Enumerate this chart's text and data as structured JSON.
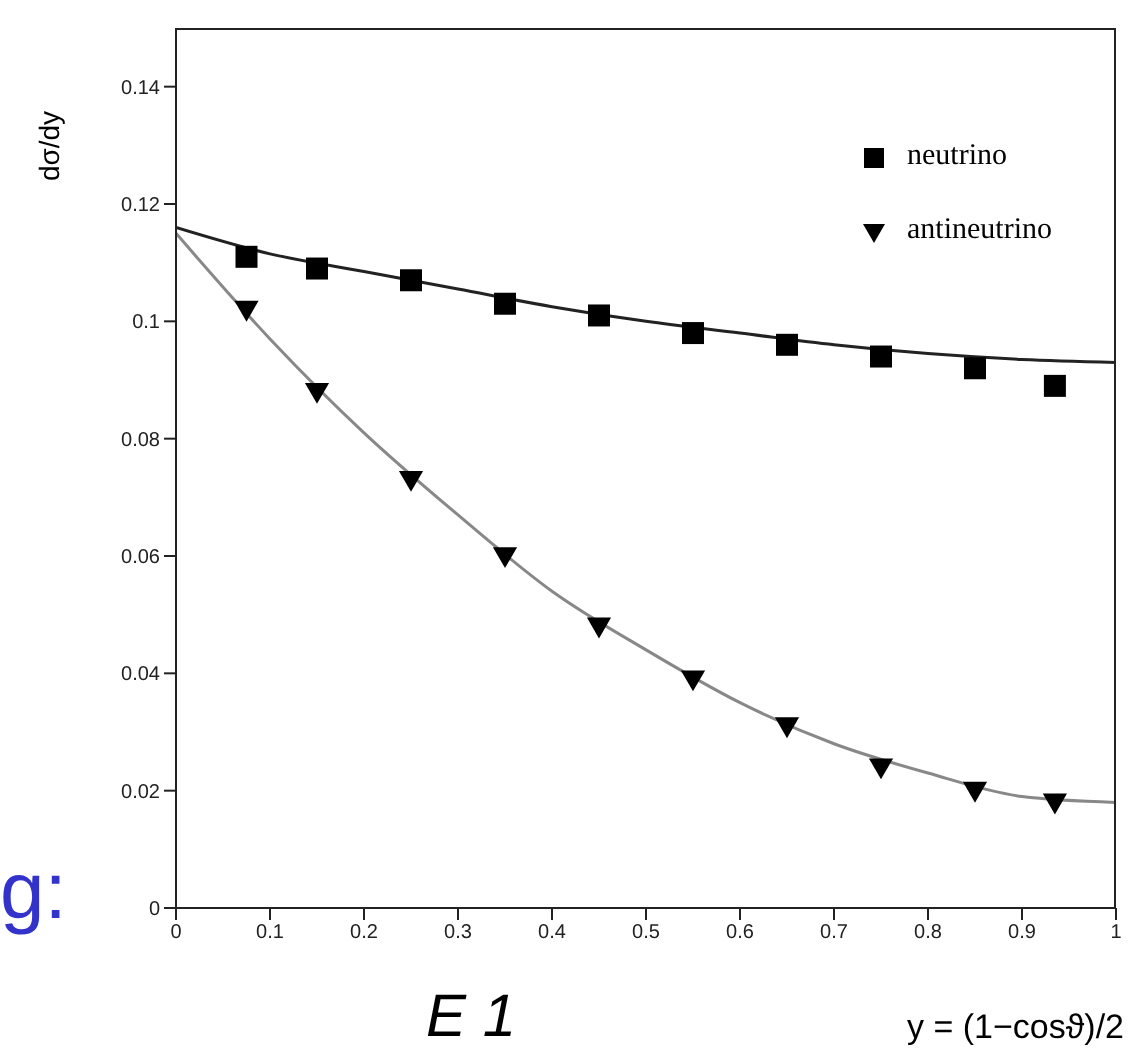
{
  "chart_data": {
    "type": "scatter",
    "xlabel": "y = (1−cosϑ)/2",
    "ylabel": "dσ/dy",
    "xlim": [
      0,
      1
    ],
    "ylim": [
      0,
      0.15
    ],
    "xticks": [
      0,
      0.1,
      0.2,
      0.3,
      0.4,
      0.5,
      0.6,
      0.7,
      0.8,
      0.9,
      1
    ],
    "yticks": [
      0,
      0.02,
      0.04,
      0.06,
      0.08,
      0.1,
      0.12,
      0.14
    ],
    "legend": "top right",
    "annotations": [
      "g:",
      "E 1"
    ],
    "series": [
      {
        "name": "neutrino",
        "marker": "square",
        "color": "#000000",
        "x": [
          0.075,
          0.15,
          0.25,
          0.35,
          0.45,
          0.55,
          0.65,
          0.75,
          0.85,
          0.935
        ],
        "values": [
          0.111,
          0.109,
          0.107,
          0.103,
          0.101,
          0.098,
          0.096,
          0.094,
          0.092,
          0.089
        ]
      },
      {
        "name": "antineutrino",
        "marker": "triangle",
        "color": "#000000",
        "x": [
          0.075,
          0.15,
          0.25,
          0.35,
          0.45,
          0.55,
          0.65,
          0.75,
          0.85,
          0.935
        ],
        "values": [
          0.102,
          0.088,
          0.073,
          0.06,
          0.048,
          0.039,
          0.031,
          0.024,
          0.02,
          0.018
        ]
      },
      {
        "type": "line",
        "color": "#222222",
        "x": [
          0,
          0.1,
          0.2,
          0.3,
          0.4,
          0.5,
          0.6,
          0.7,
          0.8,
          0.9,
          1
        ],
        "values": [
          0.116,
          0.1115,
          0.1085,
          0.1055,
          0.1025,
          0.1,
          0.098,
          0.096,
          0.0945,
          0.0935,
          0.093
        ]
      },
      {
        "type": "line",
        "color": "#888888",
        "x": [
          0,
          0.1,
          0.2,
          0.3,
          0.4,
          0.5,
          0.6,
          0.7,
          0.8,
          0.9,
          1
        ],
        "values": [
          0.115,
          0.097,
          0.081,
          0.067,
          0.054,
          0.044,
          0.035,
          0.028,
          0.023,
          0.019,
          0.018
        ]
      }
    ]
  }
}
